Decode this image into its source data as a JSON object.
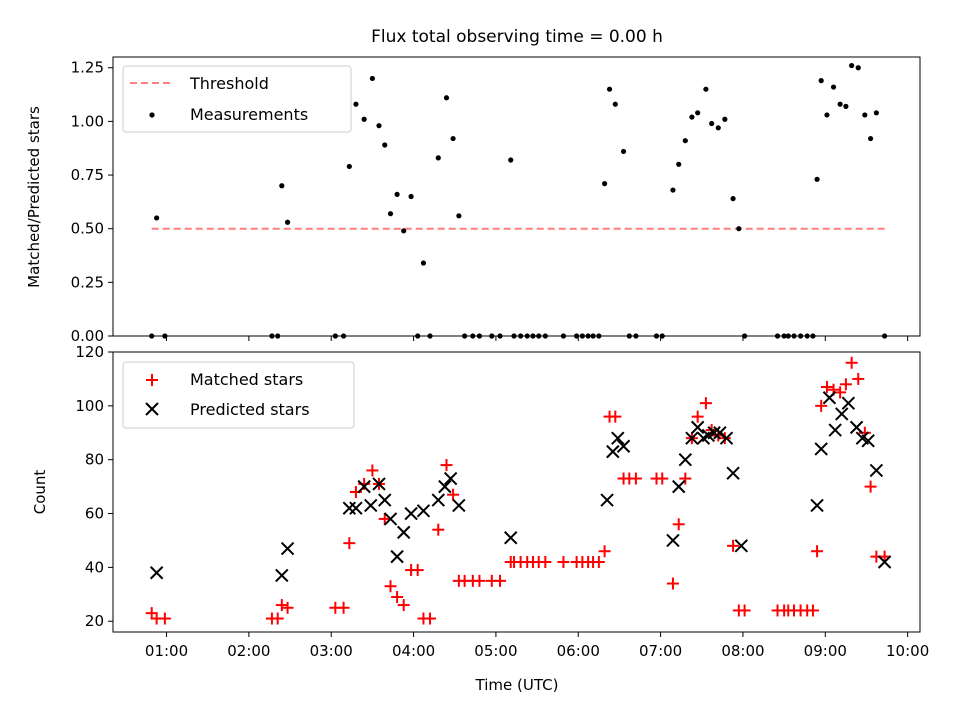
{
  "figure": {
    "title": "Flux total observing time = 0.00 h"
  },
  "chart_data": [
    {
      "type": "scatter",
      "ylabel": "Matched/Predicted stars",
      "xlabel": "",
      "xlim_hours": [
        0.35,
        10.15
      ],
      "ylim": [
        0,
        1.3
      ],
      "y_ticks": [
        "0.00",
        "0.25",
        "0.50",
        "0.75",
        "1.00",
        "1.25"
      ],
      "legend": {
        "position": "upper-left",
        "entries": [
          "Threshold",
          "Measurements"
        ]
      },
      "grid": false,
      "series": [
        {
          "name": "Threshold",
          "style": "dashed-line",
          "color": "#ff7f7f",
          "x": [
            0.82,
            9.72
          ],
          "y": [
            0.5,
            0.5
          ]
        },
        {
          "name": "Measurements",
          "style": "dot",
          "color": "#000000",
          "x": [
            0.82,
            0.88,
            0.98,
            2.28,
            2.35,
            2.4,
            2.47,
            3.05,
            3.15,
            3.22,
            3.3,
            3.4,
            3.5,
            3.58,
            3.65,
            3.72,
            3.8,
            3.88,
            3.97,
            4.05,
            4.12,
            4.2,
            4.3,
            4.4,
            4.48,
            4.55,
            4.62,
            4.72,
            4.8,
            4.95,
            5.05,
            5.18,
            5.22,
            5.3,
            5.38,
            5.45,
            5.52,
            5.6,
            5.82,
            5.98,
            6.05,
            6.12,
            6.18,
            6.25,
            6.32,
            6.38,
            6.45,
            6.55,
            6.62,
            6.7,
            6.95,
            7.02,
            7.15,
            7.22,
            7.3,
            7.38,
            7.45,
            7.55,
            7.62,
            7.7,
            7.78,
            7.88,
            7.95,
            8.02,
            8.42,
            8.5,
            8.55,
            8.62,
            8.7,
            8.78,
            8.85,
            8.9,
            8.95,
            9.02,
            9.1,
            9.18,
            9.25,
            9.32,
            9.4,
            9.48,
            9.55,
            9.62,
            9.72
          ],
          "y": [
            0,
            0.55,
            0,
            0,
            0,
            0.7,
            0.53,
            0,
            0,
            0.79,
            1.08,
            1.01,
            1.2,
            0.98,
            0.89,
            0.57,
            0.66,
            0.49,
            0.65,
            0,
            0.34,
            0,
            0.83,
            1.11,
            0.92,
            0.56,
            0,
            0,
            0,
            0,
            0,
            0.82,
            0,
            0,
            0,
            0,
            0,
            0,
            0,
            0,
            0,
            0,
            0,
            0,
            0.71,
            1.15,
            1.08,
            0.86,
            0,
            0,
            0,
            0,
            0.68,
            0.8,
            0.91,
            1.02,
            1.04,
            1.15,
            0.99,
            0.97,
            1.01,
            0.64,
            0.5,
            0,
            0,
            0,
            0,
            0,
            0,
            0,
            0,
            0.73,
            1.19,
            1.03,
            1.16,
            1.08,
            1.07,
            1.26,
            1.25,
            1.03,
            0.92,
            1.04,
            0
          ]
        }
      ]
    },
    {
      "type": "scatter",
      "ylabel": "Count",
      "xlabel": "Time (UTC)",
      "xlim_hours": [
        0.35,
        10.15
      ],
      "ylim": [
        16,
        120
      ],
      "y_ticks": [
        "20",
        "40",
        "60",
        "80",
        "100",
        "120"
      ],
      "x_ticks": [
        "01:00",
        "02:00",
        "03:00",
        "04:00",
        "05:00",
        "06:00",
        "07:00",
        "08:00",
        "09:00",
        "10:00"
      ],
      "legend": {
        "position": "upper-left",
        "entries": [
          "Matched stars",
          "Predicted stars"
        ]
      },
      "grid": false,
      "series": [
        {
          "name": "Matched stars",
          "marker": "plus",
          "color": "#ff0000",
          "x": [
            0.82,
            0.88,
            0.98,
            2.28,
            2.35,
            2.4,
            2.47,
            3.05,
            3.15,
            3.22,
            3.3,
            3.4,
            3.5,
            3.58,
            3.65,
            3.72,
            3.8,
            3.88,
            3.97,
            4.05,
            4.12,
            4.2,
            4.3,
            4.4,
            4.48,
            4.55,
            4.62,
            4.72,
            4.8,
            4.95,
            5.05,
            5.18,
            5.22,
            5.3,
            5.38,
            5.45,
            5.52,
            5.6,
            5.82,
            5.98,
            6.05,
            6.12,
            6.18,
            6.25,
            6.32,
            6.38,
            6.45,
            6.55,
            6.62,
            6.7,
            6.95,
            7.02,
            7.15,
            7.22,
            7.3,
            7.38,
            7.45,
            7.55,
            7.62,
            7.7,
            7.78,
            7.88,
            7.95,
            8.02,
            8.42,
            8.5,
            8.55,
            8.62,
            8.7,
            8.78,
            8.85,
            8.9,
            8.95,
            9.02,
            9.1,
            9.18,
            9.25,
            9.32,
            9.4,
            9.48,
            9.55,
            9.62,
            9.72
          ],
          "y": [
            23,
            21,
            21,
            21,
            21,
            26,
            25,
            25,
            25,
            49,
            68,
            71,
            76,
            71,
            58,
            33,
            29,
            26,
            39,
            39,
            21,
            21,
            54,
            78,
            67,
            35,
            35,
            35,
            35,
            35,
            35,
            42,
            42,
            42,
            42,
            42,
            42,
            42,
            42,
            42,
            42,
            42,
            42,
            42,
            46,
            96,
            96,
            73,
            73,
            73,
            73,
            73,
            34,
            56,
            73,
            88,
            96,
            101,
            91,
            89,
            88,
            48,
            24,
            24,
            24,
            24,
            24,
            24,
            24,
            24,
            24,
            46,
            100,
            107,
            106,
            105,
            108,
            116,
            110,
            90,
            70,
            44,
            44
          ]
        },
        {
          "name": "Predicted stars",
          "marker": "x",
          "color": "#000000",
          "x": [
            0.88,
            2.4,
            2.47,
            3.22,
            3.3,
            3.4,
            3.48,
            3.58,
            3.65,
            3.72,
            3.8,
            3.88,
            3.97,
            4.12,
            4.3,
            4.38,
            4.45,
            4.55,
            5.18,
            6.35,
            6.42,
            6.48,
            6.55,
            7.15,
            7.22,
            7.3,
            7.38,
            7.45,
            7.52,
            7.58,
            7.65,
            7.72,
            7.8,
            7.88,
            7.98,
            8.9,
            8.95,
            9.05,
            9.12,
            9.2,
            9.28,
            9.38,
            9.45,
            9.52,
            9.62,
            9.72
          ],
          "y": [
            38,
            37,
            47,
            62,
            62,
            70,
            63,
            71,
            65,
            58,
            44,
            53,
            60,
            61,
            65,
            70,
            73,
            63,
            51,
            65,
            83,
            88,
            85,
            50,
            70,
            80,
            88,
            92,
            88,
            89,
            90,
            90,
            88,
            75,
            48,
            63,
            84,
            103,
            91,
            97,
            101,
            92,
            88,
            87,
            76,
            42
          ]
        }
      ]
    }
  ]
}
